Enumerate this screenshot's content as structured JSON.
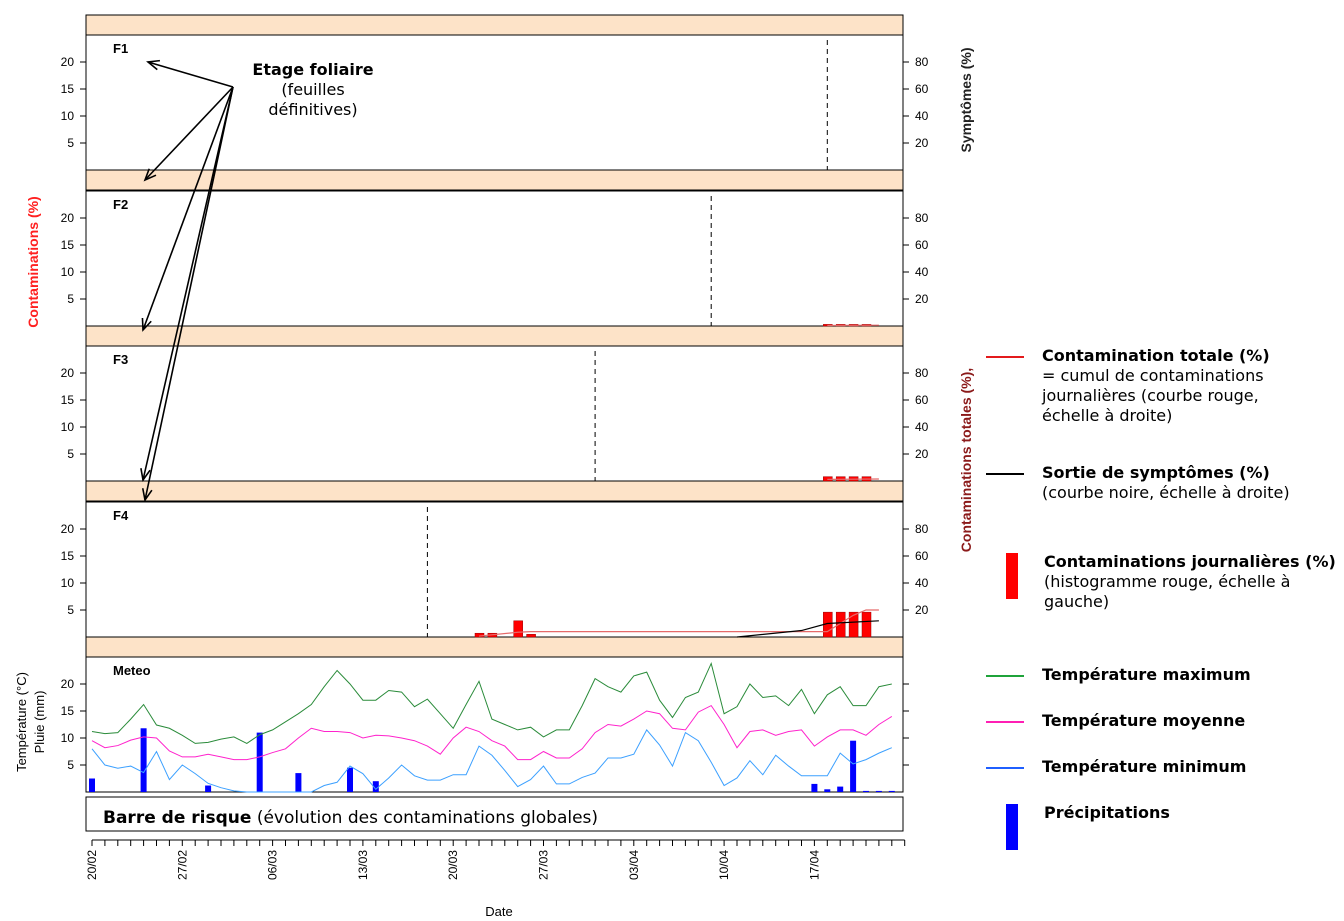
{
  "chart_data": {
    "type": "bar",
    "xlabel": "Date",
    "left_axis_label": "Contaminations (%)",
    "right_axis_label_top": "Symptômes (%)",
    "right_axis_label_bottom": "Contaminations totales (%),",
    "meteo_axis_label_1": "Température (°C)",
    "meteo_axis_label_2": "Pluie (mm)",
    "x_ticks": [
      "20/02",
      "27/02",
      "06/03",
      "13/03",
      "20/03",
      "27/03",
      "03/04",
      "10/04",
      "17/04"
    ],
    "left_ticks": [
      5,
      10,
      15,
      20
    ],
    "right_ticks": [
      20,
      40,
      60,
      80
    ],
    "ylim_left": [
      0,
      25
    ],
    "ylim_right": [
      0,
      100
    ],
    "panels": [
      {
        "label": "F1",
        "symptom_day": 57,
        "daily": [],
        "total": [],
        "symptoms": []
      },
      {
        "label": "F2",
        "symptom_day": 48,
        "daily": [
          [
            57,
            0.3
          ],
          [
            58,
            0.3
          ],
          [
            59,
            0.3
          ],
          [
            60,
            0.3
          ]
        ],
        "total": [
          [
            57,
            0.4
          ],
          [
            61,
            0.6
          ]
        ],
        "symptoms": []
      },
      {
        "label": "F3",
        "symptom_day": 39,
        "daily": [
          [
            57,
            0.8
          ],
          [
            58,
            0.8
          ],
          [
            59,
            0.8
          ],
          [
            60,
            0.8
          ]
        ],
        "total": [
          [
            57,
            1.2
          ],
          [
            61,
            1.5
          ]
        ],
        "symptoms": []
      },
      {
        "label": "F4",
        "symptom_day": 26,
        "daily": [
          [
            30,
            0.7
          ],
          [
            31,
            0.7
          ],
          [
            33,
            3.0
          ],
          [
            34,
            0.5
          ],
          [
            57,
            4.6
          ],
          [
            58,
            4.6
          ],
          [
            59,
            4.6
          ],
          [
            60,
            4.6
          ]
        ],
        "total": [
          [
            30,
            0.7
          ],
          [
            33,
            3.5
          ],
          [
            34,
            4.0
          ],
          [
            57,
            4.0
          ],
          [
            58,
            10
          ],
          [
            59,
            16
          ],
          [
            60,
            20
          ],
          [
            61,
            20
          ]
        ],
        "symptoms": [
          [
            50,
            0
          ],
          [
            55,
            1.2
          ],
          [
            57,
            2.5
          ],
          [
            61,
            3.0
          ]
        ]
      }
    ],
    "meteo": {
      "label": "Meteo",
      "ylim": [
        0,
        25
      ],
      "ticks": [
        5,
        10,
        15,
        20
      ],
      "tmax": [
        11.2,
        10.8,
        11,
        13.5,
        16.2,
        12.4,
        11.8,
        10.5,
        9,
        9.2,
        9.8,
        10.2,
        9,
        10.6,
        11.5,
        13,
        14.5,
        16.2,
        19.5,
        22.5,
        20,
        17,
        17,
        18.8,
        18.5,
        15.8,
        17.2,
        14.5,
        11.8,
        16.2,
        20.5,
        13.5,
        12.5,
        11.5,
        12,
        10.2,
        11.5,
        11.5,
        16,
        21,
        19.5,
        18.5,
        21.5,
        22.2,
        17,
        13.8,
        17.5,
        18.5,
        23.8,
        14.5,
        15.8,
        20,
        17.5,
        17.8,
        16,
        19,
        14.5,
        18,
        19.5,
        16,
        16,
        19.5,
        20
      ],
      "tavg": [
        9.5,
        8.2,
        8.6,
        9.6,
        10.2,
        10,
        7.6,
        6.5,
        6.5,
        7,
        6.5,
        6,
        6,
        6.5,
        7.3,
        8,
        10,
        11.8,
        11.2,
        11.2,
        11,
        10,
        10.5,
        10.4,
        10,
        9.5,
        8.5,
        7,
        10,
        12,
        11.2,
        9.5,
        8.5,
        6,
        6,
        7.5,
        6.3,
        6.3,
        8,
        11,
        12.5,
        12.2,
        13.5,
        15,
        14.5,
        11.8,
        11.5,
        14.8,
        16,
        12.5,
        8.2,
        11.2,
        11.5,
        10.5,
        11.2,
        11.5,
        8.5,
        10.2,
        11.5,
        11.5,
        10.5,
        12.5,
        14
      ],
      "tmin": [
        8,
        5,
        4.4,
        4.8,
        3.6,
        7.5,
        2.3,
        5,
        3.4,
        1.6,
        0.8,
        0.2,
        0,
        0,
        0,
        0,
        0,
        0,
        1.2,
        1.8,
        4.8,
        3.4,
        0.5,
        2.6,
        5,
        3,
        2.2,
        2.2,
        3.2,
        3.2,
        8.5,
        6.8,
        4,
        1,
        2.3,
        4.8,
        1.5,
        1.5,
        2.7,
        3.5,
        6.3,
        6.3,
        7,
        11.5,
        8.7,
        4.8,
        11,
        9.5,
        5.5,
        1.2,
        2.6,
        5.8,
        3.2,
        6.8,
        4.8,
        3,
        3,
        3,
        7.2,
        5.2,
        6,
        7.2,
        8.2
      ],
      "rain": [
        [
          0,
          2.5
        ],
        [
          4,
          11.8
        ],
        [
          9,
          1.2
        ],
        [
          13,
          11
        ],
        [
          16,
          3.5
        ],
        [
          20,
          4.5
        ],
        [
          22,
          2
        ],
        [
          60,
          0.2
        ],
        [
          61,
          0.2
        ],
        [
          62,
          0.2
        ],
        [
          56,
          1.5
        ],
        [
          57,
          0.5
        ],
        [
          58,
          1
        ],
        [
          59,
          9.5
        ]
      ]
    },
    "risk_bar": {
      "title": "Barre de risque",
      "subtitle": "(évolution des contaminations globales)"
    }
  },
  "annotation": {
    "title": "Etage foliaire",
    "line1": "(feuilles",
    "line2": "définitives)"
  },
  "legend": [
    {
      "swatch": "line",
      "color": "#e31a1c",
      "title": "Contamination totale (%)",
      "lines": [
        "= cumul de contaminations",
        "journalières (courbe rouge,",
        "échelle à droite)"
      ]
    },
    {
      "swatch": "line",
      "color": "#000000",
      "title": "Sortie de symptômes (%)",
      "lines": [
        "(courbe noire, échelle à droite)"
      ]
    },
    {
      "swatch": "bar",
      "color": "#ff0000",
      "title": "Contaminations journalières (%)",
      "lines": [
        "(histogramme rouge, échelle à",
        "gauche)"
      ]
    },
    {
      "swatch": "line",
      "color": "#1fa33a",
      "title": "Température maximum",
      "lines": []
    },
    {
      "swatch": "line",
      "color": "#ff1fb4",
      "title": "Température moyenne",
      "lines": []
    },
    {
      "swatch": "line",
      "color": "#1f5fff",
      "title": "Température minimum",
      "lines": []
    },
    {
      "swatch": "bar",
      "color": "#0000ff",
      "title": "Précipitations",
      "lines": []
    }
  ],
  "colors": {
    "strip": "#fde3c8",
    "daily": "#ff0000",
    "total": "#e56a6a",
    "symptoms": "#000000",
    "tmax": "#2a8b3a",
    "tavg": "#ff22cc",
    "tmin": "#3ca0ff",
    "rain": "#0000ff",
    "axis_red": "#ff2020",
    "axis_darkred": "#8b1a1a"
  }
}
